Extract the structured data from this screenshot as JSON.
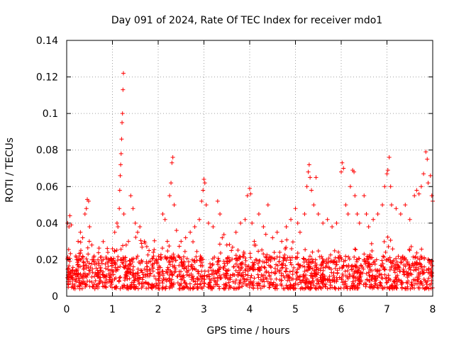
{
  "chart_data": {
    "type": "scatter",
    "title": "Day 091 of 2024, Rate Of TEC Index for receiver mdo1",
    "xlabel": "GPS time / hours",
    "ylabel": "ROTI / TECUs",
    "xlim": [
      0,
      8
    ],
    "ylim": [
      0,
      0.14
    ],
    "x_ticks": [
      "0",
      "1",
      "2",
      "3",
      "4",
      "5",
      "6",
      "7",
      "8"
    ],
    "y_ticks": [
      "0",
      "0.02",
      "0.04",
      "0.06",
      "0.08",
      "0.1",
      "0.12",
      "0.14"
    ],
    "grid": true,
    "marker": "+",
    "color": "#ff0000",
    "series": [
      {
        "name": "ROTI",
        "points": [
          [
            0.02,
            0.04
          ],
          [
            0.05,
            0.038
          ],
          [
            0.07,
            0.044
          ],
          [
            0.1,
            0.039
          ],
          [
            0.04,
            0.02
          ],
          [
            0.08,
            0.012
          ],
          [
            0.12,
            0.01
          ],
          [
            0.2,
            0.022
          ],
          [
            0.25,
            0.03
          ],
          [
            0.3,
            0.035
          ],
          [
            0.35,
            0.032
          ],
          [
            0.4,
            0.045
          ],
          [
            0.43,
            0.048
          ],
          [
            0.45,
            0.053
          ],
          [
            0.48,
            0.052
          ],
          [
            0.5,
            0.038
          ],
          [
            0.55,
            0.028
          ],
          [
            0.6,
            0.022
          ],
          [
            0.7,
            0.018
          ],
          [
            0.8,
            0.02
          ],
          [
            0.9,
            0.024
          ],
          [
            1.0,
            0.026
          ],
          [
            1.05,
            0.035
          ],
          [
            1.1,
            0.04
          ],
          [
            1.12,
            0.038
          ],
          [
            1.15,
            0.048
          ],
          [
            1.16,
            0.058
          ],
          [
            1.17,
            0.066
          ],
          [
            1.18,
            0.072
          ],
          [
            1.19,
            0.078
          ],
          [
            1.2,
            0.086
          ],
          [
            1.21,
            0.095
          ],
          [
            1.22,
            0.1
          ],
          [
            1.23,
            0.113
          ],
          [
            1.24,
            0.122
          ],
          [
            1.25,
            0.045
          ],
          [
            1.3,
            0.028
          ],
          [
            1.35,
            0.03
          ],
          [
            1.4,
            0.055
          ],
          [
            1.45,
            0.048
          ],
          [
            1.5,
            0.04
          ],
          [
            1.55,
            0.035
          ],
          [
            1.6,
            0.038
          ],
          [
            1.7,
            0.03
          ],
          [
            1.8,
            0.025
          ],
          [
            1.9,
            0.022
          ],
          [
            2.0,
            0.02
          ],
          [
            2.1,
            0.045
          ],
          [
            2.15,
            0.042
          ],
          [
            2.2,
            0.03
          ],
          [
            2.25,
            0.055
          ],
          [
            2.28,
            0.062
          ],
          [
            2.3,
            0.073
          ],
          [
            2.32,
            0.076
          ],
          [
            2.35,
            0.05
          ],
          [
            2.4,
            0.036
          ],
          [
            2.5,
            0.03
          ],
          [
            2.6,
            0.032
          ],
          [
            2.7,
            0.035
          ],
          [
            2.8,
            0.038
          ],
          [
            2.9,
            0.042
          ],
          [
            2.95,
            0.052
          ],
          [
            2.98,
            0.058
          ],
          [
            3.0,
            0.064
          ],
          [
            3.02,
            0.062
          ],
          [
            3.05,
            0.05
          ],
          [
            3.1,
            0.04
          ],
          [
            3.2,
            0.038
          ],
          [
            3.3,
            0.052
          ],
          [
            3.35,
            0.045
          ],
          [
            3.4,
            0.032
          ],
          [
            3.5,
            0.028
          ],
          [
            3.6,
            0.025
          ],
          [
            3.7,
            0.035
          ],
          [
            3.8,
            0.04
          ],
          [
            3.9,
            0.042
          ],
          [
            3.95,
            0.055
          ],
          [
            4.0,
            0.059
          ],
          [
            4.02,
            0.056
          ],
          [
            4.05,
            0.04
          ],
          [
            4.1,
            0.03
          ],
          [
            4.2,
            0.045
          ],
          [
            4.3,
            0.038
          ],
          [
            4.4,
            0.05
          ],
          [
            4.5,
            0.032
          ],
          [
            4.6,
            0.035
          ],
          [
            4.7,
            0.03
          ],
          [
            4.8,
            0.038
          ],
          [
            4.9,
            0.042
          ],
          [
            5.0,
            0.048
          ],
          [
            5.05,
            0.04
          ],
          [
            5.1,
            0.035
          ],
          [
            5.2,
            0.045
          ],
          [
            5.25,
            0.06
          ],
          [
            5.28,
            0.068
          ],
          [
            5.3,
            0.072
          ],
          [
            5.32,
            0.065
          ],
          [
            5.35,
            0.058
          ],
          [
            5.4,
            0.05
          ],
          [
            5.45,
            0.065
          ],
          [
            5.5,
            0.045
          ],
          [
            5.6,
            0.04
          ],
          [
            5.7,
            0.042
          ],
          [
            5.8,
            0.038
          ],
          [
            5.9,
            0.04
          ],
          [
            6.0,
            0.068
          ],
          [
            6.02,
            0.073
          ],
          [
            6.05,
            0.07
          ],
          [
            6.1,
            0.05
          ],
          [
            6.15,
            0.045
          ],
          [
            6.2,
            0.06
          ],
          [
            6.25,
            0.069
          ],
          [
            6.28,
            0.068
          ],
          [
            6.3,
            0.055
          ],
          [
            6.35,
            0.045
          ],
          [
            6.4,
            0.04
          ],
          [
            6.5,
            0.055
          ],
          [
            6.55,
            0.045
          ],
          [
            6.6,
            0.038
          ],
          [
            6.7,
            0.042
          ],
          [
            6.8,
            0.045
          ],
          [
            6.9,
            0.05
          ],
          [
            6.95,
            0.06
          ],
          [
            7.0,
            0.067
          ],
          [
            7.02,
            0.069
          ],
          [
            7.05,
            0.076
          ],
          [
            7.08,
            0.06
          ],
          [
            7.1,
            0.05
          ],
          [
            7.2,
            0.048
          ],
          [
            7.3,
            0.045
          ],
          [
            7.4,
            0.05
          ],
          [
            7.5,
            0.042
          ],
          [
            7.6,
            0.055
          ],
          [
            7.65,
            0.058
          ],
          [
            7.7,
            0.056
          ],
          [
            7.75,
            0.06
          ],
          [
            7.8,
            0.067
          ],
          [
            7.85,
            0.079
          ],
          [
            7.88,
            0.075
          ],
          [
            7.9,
            0.062
          ],
          [
            7.95,
            0.066
          ],
          [
            7.98,
            0.055
          ],
          [
            8.0,
            0.052
          ]
        ]
      }
    ],
    "baseline_band": {
      "x_from": 0,
      "x_to": 8,
      "y_low": 0.004,
      "y_high": 0.022,
      "density_per_hour": 220
    }
  }
}
